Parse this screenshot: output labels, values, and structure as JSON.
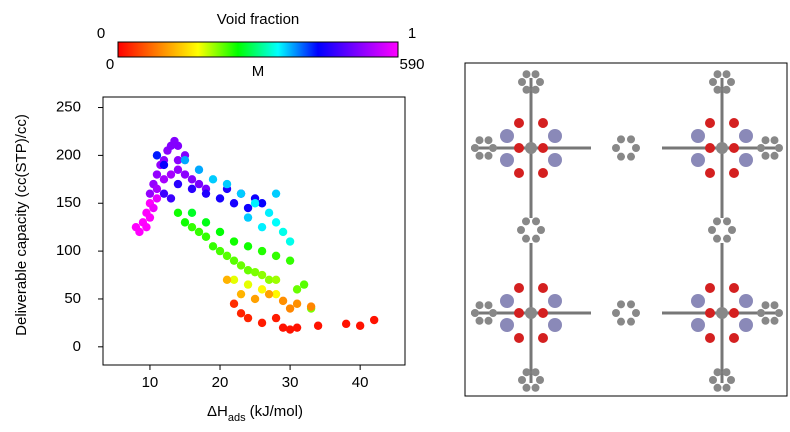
{
  "chart_data": {
    "type": "scatter",
    "xlabel": {
      "main": "ΔH",
      "sub": "ads",
      "unit": "(kJ/mol)"
    },
    "ylabel": "Deliverable capacity (cc(STP)/cc)",
    "xlim": [
      3.3,
      46.4
    ],
    "xticks": [
      10,
      20,
      30,
      40
    ],
    "ylim": [
      -19,
      261
    ],
    "yticks": [
      0,
      50,
      100,
      150,
      200,
      250
    ],
    "colorbar": {
      "label": "Void fraction",
      "lim": [
        0,
        1
      ],
      "label2": "M",
      "lim2": [
        0,
        590
      ],
      "colormap": [
        "#ff0000",
        "#ff8000",
        "#ffff00",
        "#00ff00",
        "#00ffff",
        "#0000ff",
        "#8000ff",
        "#ff00ff"
      ]
    },
    "x": [
      8,
      8.5,
      9,
      9.5,
      10,
      10.5,
      11,
      9.5,
      10,
      10,
      10.5,
      11,
      11.5,
      12,
      12.5,
      13,
      13.5,
      14,
      11,
      12,
      13,
      14,
      15,
      16,
      17,
      18,
      14,
      15,
      12,
      13,
      14,
      16,
      18,
      20,
      22,
      24,
      26,
      21,
      23,
      25,
      11,
      12,
      15,
      17,
      19,
      21,
      23,
      25,
      27,
      28,
      29,
      30,
      28,
      26,
      24,
      14,
      15,
      16,
      17,
      18,
      19,
      20,
      21,
      22,
      23,
      24,
      25,
      26,
      27,
      28,
      16,
      18,
      20,
      22,
      24,
      26,
      28,
      30,
      32,
      33,
      31,
      22,
      24,
      26,
      28,
      21,
      23,
      25,
      27,
      29,
      31,
      33,
      30,
      22,
      23,
      24,
      26,
      28,
      29,
      30,
      31,
      34,
      38,
      40,
      42
    ],
    "y": [
      125,
      120,
      130,
      140,
      150,
      145,
      155,
      125,
      135,
      160,
      170,
      180,
      190,
      195,
      205,
      210,
      215,
      210,
      165,
      175,
      180,
      185,
      180,
      175,
      170,
      165,
      195,
      200,
      160,
      155,
      170,
      165,
      160,
      155,
      150,
      145,
      150,
      165,
      160,
      155,
      200,
      190,
      195,
      185,
      175,
      170,
      160,
      150,
      140,
      130,
      120,
      110,
      160,
      125,
      135,
      140,
      130,
      125,
      120,
      115,
      105,
      100,
      95,
      90,
      85,
      80,
      78,
      75,
      70,
      70,
      140,
      130,
      120,
      110,
      105,
      100,
      95,
      90,
      65,
      40,
      60,
      70,
      65,
      60,
      55,
      70,
      55,
      50,
      55,
      48,
      45,
      42,
      40,
      45,
      35,
      30,
      25,
      30,
      20,
      18,
      20,
      22,
      24,
      22,
      28
    ],
    "c": [
      1,
      1,
      1,
      1,
      1,
      0.98,
      0.97,
      1,
      1,
      0.88,
      0.88,
      0.88,
      0.88,
      0.87,
      0.87,
      0.86,
      0.86,
      0.86,
      0.9,
      0.9,
      0.9,
      0.88,
      0.87,
      0.86,
      0.85,
      0.85,
      0.87,
      0.86,
      0.78,
      0.78,
      0.76,
      0.76,
      0.75,
      0.74,
      0.74,
      0.73,
      0.72,
      0.75,
      0.74,
      0.73,
      0.7,
      0.72,
      0.62,
      0.62,
      0.6,
      0.6,
      0.6,
      0.58,
      0.58,
      0.57,
      0.56,
      0.56,
      0.6,
      0.58,
      0.6,
      0.42,
      0.42,
      0.4,
      0.4,
      0.4,
      0.4,
      0.39,
      0.38,
      0.38,
      0.37,
      0.37,
      0.36,
      0.35,
      0.35,
      0.34,
      0.45,
      0.44,
      0.43,
      0.42,
      0.42,
      0.41,
      0.4,
      0.4,
      0.38,
      0.36,
      0.37,
      0.3,
      0.3,
      0.28,
      0.28,
      0.2,
      0.2,
      0.18,
      0.18,
      0.16,
      0.16,
      0.15,
      0.15,
      0.05,
      0.04,
      0.04,
      0.03,
      0.03,
      0.02,
      0.02,
      0.02,
      0.02,
      0.02,
      0.02,
      0.02
    ]
  }
}
